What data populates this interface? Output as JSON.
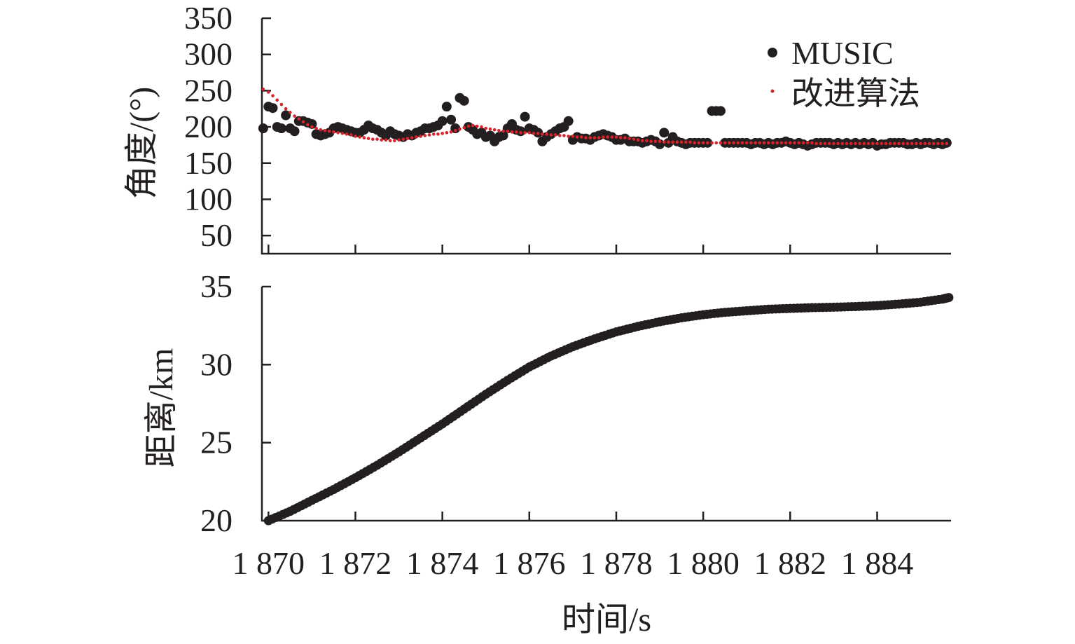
{
  "colors": {
    "music": "#231f20",
    "improved": "#d6232b",
    "axis": "#231f20"
  },
  "chart_data": [
    {
      "type": "scatter",
      "panel": "angle",
      "ylabel": "角度/(°)",
      "xlim": [
        1869.85,
        1885.7
      ],
      "ylim": [
        25,
        350
      ],
      "yticks": [
        50,
        100,
        150,
        200,
        250,
        300,
        350
      ],
      "xticks": [
        1870.0,
        1872.0,
        1874.0,
        1876.0,
        1878.0,
        1880.0,
        1882.0,
        1884.0
      ],
      "grid": false,
      "legend_position": "top-right",
      "series": [
        {
          "name": "MUSIC",
          "x": [
            1869.88,
            1870.0,
            1870.1,
            1870.2,
            1870.3,
            1870.4,
            1870.5,
            1870.6,
            1870.7,
            1870.8,
            1870.9,
            1871.0,
            1871.1,
            1871.2,
            1871.3,
            1871.4,
            1871.5,
            1871.6,
            1871.7,
            1871.8,
            1871.9,
            1872.0,
            1872.1,
            1872.2,
            1872.3,
            1872.4,
            1872.5,
            1872.6,
            1872.7,
            1872.8,
            1872.9,
            1873.0,
            1873.1,
            1873.2,
            1873.3,
            1873.4,
            1873.5,
            1873.6,
            1873.7,
            1873.8,
            1873.9,
            1874.0,
            1874.1,
            1874.2,
            1874.3,
            1874.4,
            1874.5,
            1874.6,
            1874.7,
            1874.8,
            1874.9,
            1875.0,
            1875.1,
            1875.2,
            1875.3,
            1875.4,
            1875.5,
            1875.6,
            1875.7,
            1875.8,
            1875.9,
            1876.0,
            1876.1,
            1876.2,
            1876.3,
            1876.4,
            1876.5,
            1876.6,
            1876.7,
            1876.8,
            1876.9,
            1877.0,
            1877.1,
            1877.2,
            1877.3,
            1877.4,
            1877.5,
            1877.6,
            1877.7,
            1877.8,
            1877.9,
            1878.0,
            1878.1,
            1878.2,
            1878.3,
            1878.4,
            1878.5,
            1878.6,
            1878.7,
            1878.8,
            1878.9,
            1879.0,
            1879.1,
            1879.2,
            1879.3,
            1879.4,
            1879.5,
            1879.6,
            1879.7,
            1879.8,
            1879.9,
            1880.0,
            1880.1,
            1880.2,
            1880.3,
            1880.4,
            1880.5,
            1880.6,
            1880.7,
            1880.8,
            1880.9,
            1881.0,
            1881.1,
            1881.2,
            1881.3,
            1881.4,
            1881.5,
            1881.6,
            1881.7,
            1881.8,
            1881.9,
            1882.0,
            1882.1,
            1882.2,
            1882.3,
            1882.4,
            1882.5,
            1882.6,
            1882.7,
            1882.8,
            1882.9,
            1883.0,
            1883.1,
            1883.2,
            1883.3,
            1883.4,
            1883.5,
            1883.6,
            1883.7,
            1883.8,
            1883.9,
            1884.0,
            1884.1,
            1884.2,
            1884.3,
            1884.4,
            1884.5,
            1884.6,
            1884.7,
            1884.8,
            1884.9,
            1885.0,
            1885.1,
            1885.2,
            1885.3,
            1885.4,
            1885.5,
            1885.6
          ],
          "y": [
            198,
            228,
            226,
            200,
            198,
            216,
            198,
            194,
            208,
            208,
            206,
            204,
            190,
            188,
            190,
            192,
            198,
            200,
            198,
            196,
            194,
            192,
            192,
            196,
            202,
            198,
            196,
            192,
            188,
            194,
            190,
            188,
            186,
            190,
            188,
            192,
            194,
            198,
            198,
            200,
            202,
            208,
            228,
            210,
            198,
            240,
            236,
            200,
            196,
            190,
            192,
            186,
            188,
            180,
            186,
            188,
            198,
            204,
            196,
            194,
            214,
            198,
            196,
            192,
            180,
            186,
            190,
            194,
            198,
            200,
            208,
            182,
            186,
            184,
            184,
            182,
            186,
            188,
            190,
            188,
            186,
            182,
            182,
            184,
            180,
            180,
            180,
            178,
            180,
            182,
            180,
            176,
            192,
            178,
            186,
            180,
            178,
            176,
            178,
            178,
            178,
            178,
            178,
            222,
            222,
            222,
            178,
            178,
            178,
            178,
            178,
            178,
            176,
            178,
            178,
            176,
            178,
            176,
            178,
            178,
            180,
            178,
            176,
            178,
            176,
            174,
            176,
            178,
            178,
            178,
            178,
            176,
            178,
            176,
            178,
            176,
            178,
            176,
            178,
            176,
            178,
            174,
            176,
            176,
            178,
            178,
            178,
            178,
            176,
            176,
            178,
            176,
            178,
            178,
            176,
            178,
            176,
            178
          ]
        },
        {
          "name": "改进算法",
          "x": [
            1869.88,
            1870.0,
            1870.1,
            1870.2,
            1870.3,
            1870.4,
            1870.5,
            1870.6,
            1870.7,
            1870.8,
            1870.9,
            1871.0,
            1871.1,
            1871.2,
            1871.3,
            1871.4,
            1871.5,
            1871.6,
            1871.7,
            1871.8,
            1871.9,
            1872.0,
            1872.1,
            1872.2,
            1872.3,
            1872.4,
            1872.5,
            1872.6,
            1872.7,
            1872.8,
            1872.9,
            1873.0,
            1873.1,
            1873.2,
            1873.3,
            1873.4,
            1873.5,
            1873.6,
            1873.7,
            1873.8,
            1873.9,
            1874.0,
            1874.1,
            1874.2,
            1874.3,
            1874.4,
            1874.5,
            1874.6,
            1874.7,
            1874.8,
            1874.9,
            1875.0,
            1875.1,
            1875.2,
            1875.3,
            1875.4,
            1875.5,
            1875.6,
            1875.7,
            1875.8,
            1875.9,
            1876.0,
            1876.1,
            1876.2,
            1876.3,
            1876.4,
            1876.5,
            1876.6,
            1876.7,
            1876.8,
            1876.9,
            1877.0,
            1877.1,
            1877.2,
            1877.3,
            1877.4,
            1877.5,
            1877.6,
            1877.7,
            1877.8,
            1877.9,
            1878.0,
            1878.1,
            1878.2,
            1878.3,
            1878.4,
            1878.5,
            1878.6,
            1878.7,
            1878.8,
            1878.9,
            1879.0,
            1879.1,
            1879.2,
            1879.3,
            1879.4,
            1879.5,
            1879.6,
            1879.7,
            1879.8,
            1879.9,
            1880.0,
            1880.1,
            1880.2,
            1880.3,
            1880.4,
            1880.5,
            1880.6,
            1880.7,
            1880.8,
            1880.9,
            1881.0,
            1881.1,
            1881.2,
            1881.3,
            1881.4,
            1881.5,
            1881.6,
            1881.7,
            1881.8,
            1881.9,
            1882.0,
            1882.1,
            1882.2,
            1882.3,
            1882.4,
            1882.5,
            1882.6,
            1882.7,
            1882.8,
            1882.9,
            1883.0,
            1883.1,
            1883.2,
            1883.3,
            1883.4,
            1883.5,
            1883.6,
            1883.7,
            1883.8,
            1883.9,
            1884.0,
            1884.1,
            1884.2,
            1884.3,
            1884.4,
            1884.5,
            1884.6,
            1884.7,
            1884.8,
            1884.9,
            1885.0,
            1885.1,
            1885.2,
            1885.3,
            1885.4,
            1885.5,
            1885.6
          ],
          "y": [
            252,
            248,
            243,
            237,
            231,
            225,
            220,
            215,
            211,
            207,
            203,
            200,
            198,
            196,
            195,
            194,
            193,
            192,
            191,
            190,
            189,
            187,
            186,
            185,
            184,
            183,
            183,
            182,
            182,
            181,
            181,
            182,
            183,
            184,
            185,
            186,
            187,
            188,
            189,
            190,
            190,
            191,
            192,
            193,
            195,
            197,
            199,
            201,
            202,
            201,
            200,
            198,
            197,
            196,
            195,
            194,
            194,
            193,
            193,
            192,
            192,
            192,
            191,
            191,
            190,
            190,
            189,
            189,
            188,
            188,
            187,
            187,
            186,
            186,
            185,
            185,
            185,
            185,
            186,
            186,
            186,
            186,
            185,
            185,
            184,
            183,
            182,
            181,
            181,
            180,
            180,
            180,
            179,
            179,
            179,
            179,
            179,
            179,
            179,
            178,
            178,
            178,
            178,
            178,
            178,
            178,
            178,
            178,
            178,
            178,
            178,
            178,
            178,
            178,
            178,
            178,
            178,
            178,
            178,
            178,
            178,
            178,
            178,
            178,
            178,
            178,
            178,
            177,
            177,
            177,
            177,
            177,
            177,
            177,
            177,
            177,
            177,
            177,
            177,
            177,
            177,
            177,
            177,
            177,
            177,
            177,
            177,
            177,
            177,
            177,
            177,
            177,
            177,
            177,
            177,
            177,
            177,
            177
          ]
        }
      ]
    },
    {
      "type": "scatter",
      "panel": "distance",
      "xlabel": "时间/s",
      "ylabel": "距离/km",
      "xlim": [
        1869.85,
        1885.7
      ],
      "ylim": [
        20,
        35
      ],
      "yticks": [
        20,
        25,
        30,
        35
      ],
      "xticks": [
        1870.0,
        1872.0,
        1874.0,
        1876.0,
        1878.0,
        1880.0,
        1882.0,
        1884.0
      ],
      "xtick_labels": [
        "1 870",
        "1 872",
        "1 874",
        "1 876",
        "1 878",
        "1 880",
        "1 882",
        "1 884"
      ],
      "grid": false,
      "series": [
        {
          "x": [
            1870.0,
            1870.5,
            1871.0,
            1871.5,
            1872.0,
            1872.5,
            1873.0,
            1873.5,
            1874.0,
            1874.5,
            1875.0,
            1875.5,
            1876.0,
            1876.5,
            1877.0,
            1877.5,
            1878.0,
            1878.5,
            1879.0,
            1879.5,
            1880.0,
            1880.5,
            1881.0,
            1881.5,
            1882.0,
            1882.5,
            1883.0,
            1883.5,
            1884.0,
            1884.5,
            1885.0,
            1885.5,
            1885.65
          ],
          "y": [
            20.0,
            20.6,
            21.3,
            22.0,
            22.75,
            23.55,
            24.4,
            25.3,
            26.2,
            27.15,
            28.1,
            29.0,
            29.85,
            30.55,
            31.15,
            31.65,
            32.1,
            32.45,
            32.75,
            33.0,
            33.2,
            33.35,
            33.45,
            33.55,
            33.6,
            33.65,
            33.68,
            33.72,
            33.78,
            33.88,
            34.0,
            34.2,
            34.3
          ]
        }
      ]
    }
  ]
}
